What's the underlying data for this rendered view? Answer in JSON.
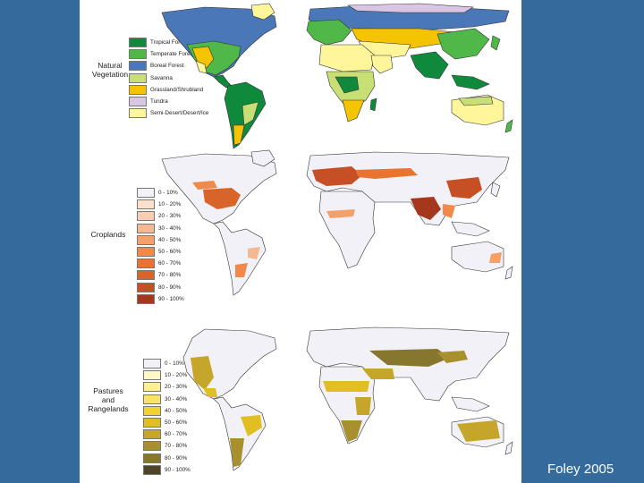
{
  "panels": {
    "vegetation": {
      "title": "Natural\nVegetation",
      "legend": [
        {
          "label": "Tropical Forest",
          "color": "#0f8a3c"
        },
        {
          "label": "Temperate Forest",
          "color": "#4fb848"
        },
        {
          "label": "Boreal Forest",
          "color": "#4a77b8"
        },
        {
          "label": "Savanna",
          "color": "#c7df74"
        },
        {
          "label": "Grassland/Shrubland",
          "color": "#f5c400"
        },
        {
          "label": "Tundra",
          "color": "#d8c6e4"
        },
        {
          "label": "Semi-Desert/Desert/Ice",
          "color": "#fff59a"
        }
      ]
    },
    "croplands": {
      "title": "Croplands",
      "legend": [
        {
          "label": "0 - 10%",
          "color": "#f1f1f7"
        },
        {
          "label": "10 - 20%",
          "color": "#fbe0cc"
        },
        {
          "label": "20 - 30%",
          "color": "#f9cdb0"
        },
        {
          "label": "30 - 40%",
          "color": "#f6b890"
        },
        {
          "label": "40 - 50%",
          "color": "#f3a06a"
        },
        {
          "label": "50 - 60%",
          "color": "#ef8a4a"
        },
        {
          "label": "60 - 70%",
          "color": "#e8742f"
        },
        {
          "label": "70 - 80%",
          "color": "#d9642a"
        },
        {
          "label": "80 - 90%",
          "color": "#c64f25"
        },
        {
          "label": "90 - 100%",
          "color": "#a5371c"
        }
      ]
    },
    "pastures": {
      "title": "Pastures\nand\nRangelands",
      "legend": [
        {
          "label": "0 - 10%",
          "color": "#f1f1f7"
        },
        {
          "label": "10 - 20%",
          "color": "#fdf8c4"
        },
        {
          "label": "20 - 30%",
          "color": "#fcef9a"
        },
        {
          "label": "30 - 40%",
          "color": "#f8e26a"
        },
        {
          "label": "40 - 50%",
          "color": "#f1d232"
        },
        {
          "label": "50 - 60%",
          "color": "#e1bf22"
        },
        {
          "label": "60 - 70%",
          "color": "#c6a62a"
        },
        {
          "label": "70 - 80%",
          "color": "#a8902e"
        },
        {
          "label": "80 - 90%",
          "color": "#87762e"
        },
        {
          "label": "90 - 100%",
          "color": "#4f4526"
        }
      ]
    }
  },
  "citation": "Foley 2005"
}
